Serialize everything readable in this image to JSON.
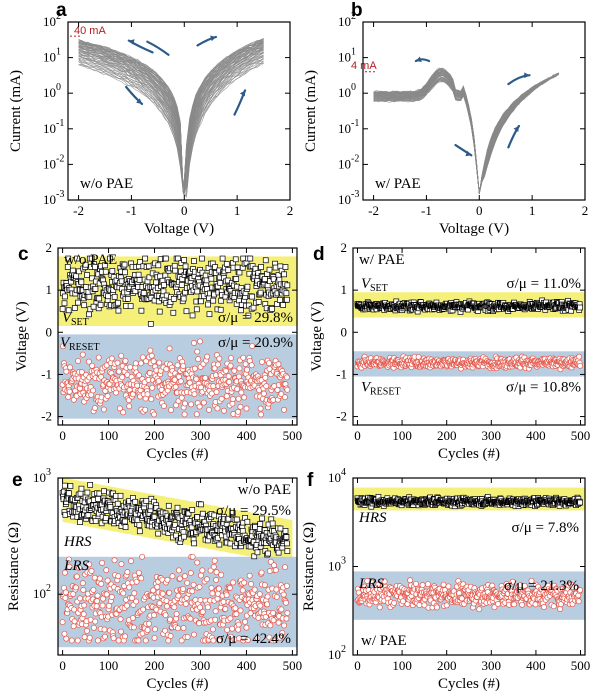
{
  "colors": {
    "iv_trace": "#8a8a8a",
    "set_band": "#f5f07a",
    "reset_band": "#b9cde0",
    "hrs_marker": "#000000",
    "lrs_marker": "#e4564a",
    "arrow": "#2c5a8a",
    "compliance": "#b22222"
  },
  "panels": {
    "a": {
      "letter": "a",
      "xlabel": "Voltage (V)",
      "ylabel": "Current (mA)",
      "xticks": [
        "-2",
        "-1",
        "0",
        "1",
        "2"
      ],
      "yticks": [
        "10",
        "10",
        "10",
        "10",
        "10",
        "10"
      ],
      "yexps": [
        "2",
        "1",
        "0",
        "-1",
        "-2",
        "-3"
      ],
      "label": "w/o PAE",
      "compliance": "40 mA"
    },
    "b": {
      "letter": "b",
      "xlabel": "Voltage (V)",
      "ylabel": "Current (mA)",
      "xticks": [
        "-2",
        "-1",
        "0",
        "1",
        "2"
      ],
      "yticks": [
        "10",
        "10",
        "10",
        "10",
        "10",
        "10"
      ],
      "yexps": [
        "2",
        "1",
        "0",
        "-1",
        "-2",
        "-3"
      ],
      "label": "w/ PAE",
      "compliance": "4 mA"
    },
    "c": {
      "letter": "c",
      "xlabel": "Cycles (#)",
      "ylabel": "Voltage (V)",
      "xticks": [
        "0",
        "100",
        "200",
        "300",
        "400",
        "500"
      ],
      "yticks": [
        "2",
        "1",
        "0",
        "-1",
        "-2"
      ],
      "label": "w/o PAE",
      "set_main": "V",
      "set_sub": "SET",
      "reset_main": "V",
      "reset_sub": "RESET",
      "set_cv": "σ/μ = 29.8%",
      "reset_cv": "σ/μ = 20.9%"
    },
    "d": {
      "letter": "d",
      "xlabel": "Cycles (#)",
      "ylabel": "Voltage (V)",
      "xticks": [
        "0",
        "100",
        "200",
        "300",
        "400",
        "500"
      ],
      "yticks": [
        "2",
        "1",
        "0",
        "-1",
        "-2"
      ],
      "label": "w/ PAE",
      "set_main": "V",
      "set_sub": "SET",
      "reset_main": "V",
      "reset_sub": "RESET",
      "set_cv": "σ/μ = 11.0%",
      "reset_cv": "σ/μ = 10.8%"
    },
    "e": {
      "letter": "e",
      "xlabel": "Cycles (#)",
      "ylabel": "Resistance (Ω)",
      "xticks": [
        "0",
        "100",
        "200",
        "300",
        "400",
        "500"
      ],
      "yticks": [
        "10",
        "10"
      ],
      "yexps": [
        "3",
        "2"
      ],
      "label": "w/o PAE",
      "hrs": "HRS",
      "lrs": "LRS",
      "hrs_cv": "σ/μ = 29.5%",
      "lrs_cv": "σ/μ = 42.4%"
    },
    "f": {
      "letter": "f",
      "xlabel": "Cycles (#)",
      "ylabel": "Resistance (Ω)",
      "xticks": [
        "0",
        "100",
        "200",
        "300",
        "400",
        "500"
      ],
      "yticks": [
        "10",
        "10",
        "10"
      ],
      "yexps": [
        "4",
        "3",
        "2"
      ],
      "label": "w/ PAE",
      "hrs": "HRS",
      "lrs": "LRS",
      "hrs_cv": "σ/μ = 7.8%",
      "lrs_cv": "σ/μ = 21.3%"
    }
  },
  "chart_data": [
    {
      "panel": "a",
      "type": "line",
      "title": "",
      "xlabel": "Voltage (V)",
      "ylabel": "Current (mA)",
      "xlim": [
        -2.2,
        2
      ],
      "ylim": [
        0.001,
        100
      ],
      "yscale": "log",
      "series": [
        {
          "values": [
            [
              -2.0,
              25
            ],
            [
              -1.5,
              15
            ],
            [
              -1.0,
              6
            ],
            [
              -0.5,
              1.5
            ],
            [
              -0.1,
              0.05
            ],
            [
              0,
              0.001
            ],
            [
              0.1,
              0.05
            ],
            [
              0.5,
              0.8
            ],
            [
              1.0,
              8
            ],
            [
              1.5,
              35
            ]
          ]
        }
      ],
      "compliance_mA": 40
    },
    {
      "panel": "b",
      "type": "line",
      "title": "",
      "xlabel": "Voltage (V)",
      "ylabel": "Current (mA)",
      "xlim": [
        -2.2,
        2
      ],
      "ylim": [
        0.001,
        100
      ],
      "yscale": "log",
      "series": [
        {
          "values": [
            [
              -2.0,
              0.8
            ],
            [
              -1.5,
              0.9
            ],
            [
              -1.0,
              1.2
            ],
            [
              -0.7,
              3.5
            ],
            [
              -0.5,
              2.5
            ],
            [
              -0.3,
              0.5
            ],
            [
              -0.1,
              0.06
            ],
            [
              0,
              0.005
            ],
            [
              0.1,
              0.05
            ],
            [
              0.5,
              0.4
            ],
            [
              1.0,
              1.5
            ],
            [
              1.5,
              3.5
            ]
          ]
        }
      ],
      "compliance_mA": 4
    },
    {
      "panel": "c",
      "type": "scatter",
      "title": "",
      "xlabel": "Cycles (#)",
      "ylabel": "Voltage (V)",
      "xlim": [
        -10,
        510
      ],
      "ylim": [
        -2.2,
        2
      ],
      "series": [
        {
          "name": "VSET",
          "mean": 1.15,
          "range": [
            0.2,
            1.75
          ],
          "cv_percent": 29.8,
          "n_cycles": 480
        },
        {
          "name": "VRESET",
          "mean": -1.2,
          "range": [
            -1.95,
            -0.1
          ],
          "cv_percent": 20.9,
          "n_cycles": 480
        }
      ]
    },
    {
      "panel": "d",
      "type": "scatter",
      "title": "",
      "xlabel": "Cycles (#)",
      "ylabel": "Voltage (V)",
      "xlim": [
        -10,
        510
      ],
      "ylim": [
        -2.2,
        2
      ],
      "series": [
        {
          "name": "VSET",
          "mean": 0.62,
          "range": [
            0.45,
            0.8
          ],
          "cv_percent": 11.0,
          "n_cycles": 500
        },
        {
          "name": "VRESET",
          "mean": -0.72,
          "range": [
            -0.95,
            -0.5
          ],
          "cv_percent": 10.8,
          "n_cycles": 500
        }
      ]
    },
    {
      "panel": "e",
      "type": "scatter",
      "title": "",
      "xlabel": "Cycles (#)",
      "ylabel": "Resistance (Ω)",
      "xlim": [
        -10,
        510
      ],
      "ylim": [
        30,
        1000
      ],
      "yscale": "log",
      "series": [
        {
          "name": "HRS",
          "start_mean": 650,
          "end_mean": 280,
          "cv_percent": 29.5,
          "n_cycles": 490
        },
        {
          "name": "LRS",
          "mean": 80,
          "range": [
            40,
            210
          ],
          "cv_percent": 42.4,
          "n_cycles": 490
        }
      ]
    },
    {
      "panel": "f",
      "type": "scatter",
      "title": "",
      "xlabel": "Cycles (#)",
      "ylabel": "Resistance (Ω)",
      "xlim": [
        -10,
        510
      ],
      "ylim": [
        100,
        10000
      ],
      "yscale": "log",
      "series": [
        {
          "name": "HRS",
          "mean": 5400,
          "range": [
            4500,
            6500
          ],
          "cv_percent": 7.8,
          "n_cycles": 500
        },
        {
          "name": "LRS",
          "mean": 480,
          "range": [
            280,
            700
          ],
          "cv_percent": 21.3,
          "n_cycles": 500
        }
      ]
    }
  ]
}
